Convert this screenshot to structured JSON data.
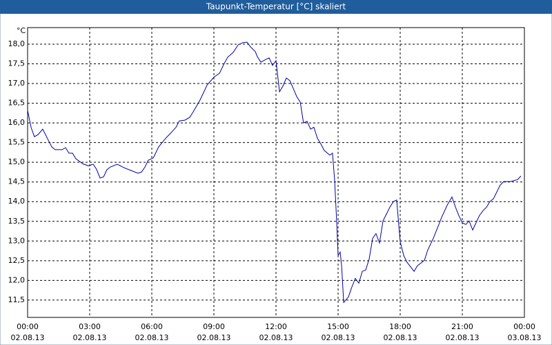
{
  "chart_data": {
    "type": "line",
    "title": "Taupunkt-Temperatur [°C] skaliert",
    "y_label": "°C",
    "xlim": [
      0,
      24
    ],
    "xticks": [
      {
        "value": 0,
        "label": "00:00",
        "date": "02.08.13"
      },
      {
        "value": 3,
        "label": "03:00",
        "date": "02.08.13"
      },
      {
        "value": 6,
        "label": "06:00",
        "date": "02.08.13"
      },
      {
        "value": 9,
        "label": "09:00",
        "date": "02.08.13"
      },
      {
        "value": 12,
        "label": "12:00",
        "date": "02.08.13"
      },
      {
        "value": 15,
        "label": "15:00",
        "date": "02.08.13"
      },
      {
        "value": 18,
        "label": "18:00",
        "date": "02.08.13"
      },
      {
        "value": 21,
        "label": "21:00",
        "date": "02.08.13"
      },
      {
        "value": 24,
        "label": "00:00",
        "date": "03.08.13"
      }
    ],
    "ylim": [
      11.06,
      18.42
    ],
    "yticks": [
      {
        "value": 11.5,
        "label": "11,5"
      },
      {
        "value": 12,
        "label": "12,0"
      },
      {
        "value": 12.5,
        "label": "12,5"
      },
      {
        "value": 13,
        "label": "13,0"
      },
      {
        "value": 13.5,
        "label": "13,5"
      },
      {
        "value": 14,
        "label": "14,0"
      },
      {
        "value": 14.5,
        "label": "14,5"
      },
      {
        "value": 15,
        "label": "15,0"
      },
      {
        "value": 15.5,
        "label": "15,5"
      },
      {
        "value": 16,
        "label": "16,0"
      },
      {
        "value": 16.5,
        "label": "16,5"
      },
      {
        "value": 17,
        "label": "17,0"
      },
      {
        "value": 17.5,
        "label": "17,5"
      },
      {
        "value": 18,
        "label": "18,0"
      }
    ],
    "grid": true,
    "series": [
      {
        "color": "#0000a0",
        "x": [
          0,
          0.17,
          0.33,
          0.5,
          0.73,
          1,
          1.17,
          1.33,
          1.67,
          1.83,
          2,
          2.17,
          2.33,
          2.67,
          2.93,
          3.17,
          3.33,
          3.5,
          3.67,
          3.83,
          4,
          4.33,
          4.67,
          5,
          5.33,
          5.5,
          5.67,
          5.83,
          6.07,
          6.33,
          6.67,
          6.93,
          7.17,
          7.33,
          7.6,
          7.83,
          8,
          8.33,
          8.67,
          9,
          9.27,
          9.5,
          9.67,
          9.93,
          10.17,
          10.4,
          10.6,
          10.77,
          11,
          11.1,
          11.27,
          11.5,
          11.67,
          11.83,
          12,
          12.17,
          12.33,
          12.5,
          12.67,
          12.83,
          13,
          13.17,
          13.33,
          13.5,
          13.67,
          13.83,
          14,
          14.17,
          14.33,
          14.6,
          14.73,
          14.83,
          14.93,
          15,
          15.1,
          15.17,
          15.27,
          15.5,
          15.67,
          15.83,
          16,
          16.17,
          16.33,
          16.5,
          16.67,
          16.83,
          17,
          17.17,
          17.33,
          17.5,
          17.67,
          17.83,
          18,
          18.17,
          18.33,
          18.67,
          18.83,
          19.17,
          19.33,
          19.6,
          19.83,
          20,
          20.27,
          20.5,
          20.67,
          20.83,
          21,
          21.17,
          21.33,
          21.5,
          21.67,
          21.83,
          22,
          22.17,
          22.33,
          22.5,
          22.67,
          22.83,
          23,
          23.33,
          23.67,
          23.83
        ],
        "values": [
          16.32,
          15.88,
          15.65,
          15.7,
          15.84,
          15.56,
          15.39,
          15.32,
          15.32,
          15.37,
          15.23,
          15.23,
          15.09,
          14.96,
          14.91,
          14.95,
          14.82,
          14.6,
          14.63,
          14.81,
          14.88,
          14.95,
          14.86,
          14.79,
          14.72,
          14.75,
          14.88,
          15.05,
          15.11,
          15.39,
          15.61,
          15.75,
          15.89,
          16.05,
          16.07,
          16.14,
          16.28,
          16.58,
          16.96,
          17.16,
          17.26,
          17.51,
          17.67,
          17.79,
          17.98,
          18.04,
          18.05,
          17.93,
          17.81,
          17.68,
          17.54,
          17.61,
          17.65,
          17.46,
          17.58,
          16.79,
          16.93,
          17.14,
          17.07,
          16.88,
          16.67,
          16.53,
          16,
          16.04,
          15.84,
          15.89,
          15.61,
          15.46,
          15.3,
          15.18,
          15.23,
          14.56,
          13.51,
          12.63,
          12.72,
          12.37,
          11.44,
          11.58,
          11.84,
          12.05,
          11.93,
          12.23,
          12.26,
          12.54,
          13.07,
          13.19,
          12.95,
          13.51,
          13.68,
          13.86,
          14,
          14.04,
          12.98,
          12.63,
          12.46,
          12.23,
          12.37,
          12.51,
          12.77,
          13.07,
          13.37,
          13.6,
          13.91,
          14.12,
          13.86,
          13.65,
          13.46,
          13.42,
          13.51,
          13.28,
          13.47,
          13.65,
          13.77,
          13.86,
          14,
          14.07,
          14.25,
          14.42,
          14.51,
          14.51,
          14.56,
          14.65
        ]
      }
    ]
  }
}
